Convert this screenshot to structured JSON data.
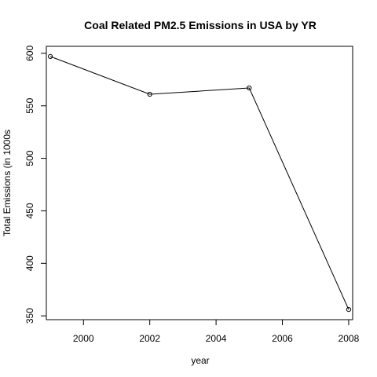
{
  "chart_data": {
    "type": "line",
    "title": "Coal Related PM2.5 Emissions in USA by YR",
    "xlabel": "year",
    "ylabel": "Total Emissions (in 1000s",
    "x": [
      1999,
      2002,
      2005,
      2008
    ],
    "series": [
      {
        "values": [
          597,
          561,
          567,
          356
        ],
        "marker": "open-circle",
        "color": "#000000"
      }
    ],
    "xlim": [
      1998.88,
      2008.12
    ],
    "ylim": [
      346.36,
      606.64
    ],
    "xticks": [
      2000,
      2002,
      2004,
      2006,
      2008
    ],
    "yticks": [
      350,
      400,
      450,
      500,
      550,
      600
    ],
    "grid": false,
    "legend": "none"
  }
}
